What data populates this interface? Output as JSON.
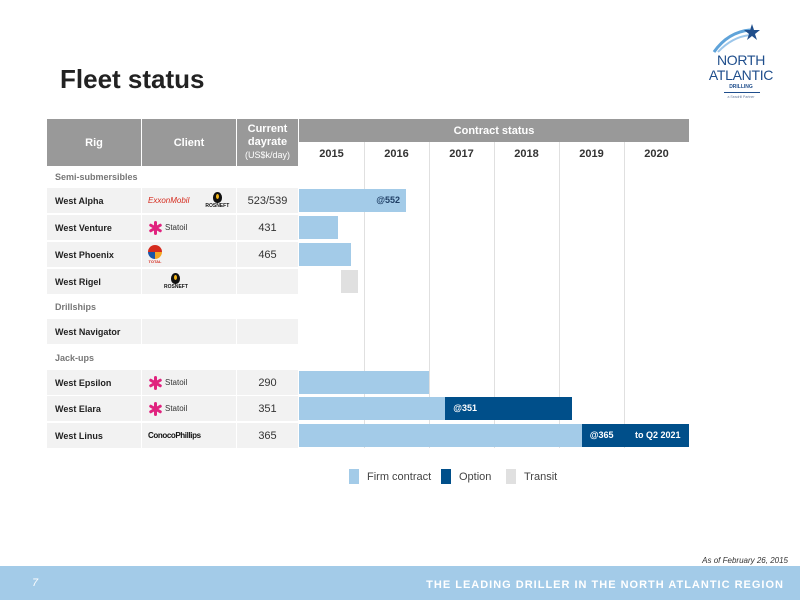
{
  "slide": {
    "title": "Fleet status",
    "page_number": "7",
    "as_of": "As of February 26, 2015",
    "tagline": "THE LEADING DRILLER IN THE NORTH ATLANTIC REGION"
  },
  "logo": {
    "line1": "NORTH",
    "line2": "ATLANTIC",
    "sub": "DRILLING",
    "tag": "a Seadrill Partner"
  },
  "headers": {
    "rig": "Rig",
    "client": "Client",
    "rate_title": "Current dayrate",
    "rate_sub": "(US$k/day)",
    "contract": "Contract status"
  },
  "colors": {
    "firm": "#a3cbe8",
    "option": "#004f8a",
    "transit": "#e0e0e0",
    "header": "#999999",
    "footer": "#a3cbe8"
  },
  "chart_data": {
    "type": "gantt",
    "years": [
      "2015",
      "2016",
      "2017",
      "2018",
      "2019",
      "2020"
    ],
    "sections": [
      "Semi-submersibles",
      "Drillships",
      "Jack-ups"
    ],
    "rows": [
      {
        "rig": "West Alpha",
        "section": "Semi-submersibles",
        "client_logos": [
          "ExxonMobil",
          "ROSNEFT"
        ],
        "dayrate": "523/539",
        "bars": [
          {
            "kind": "firm",
            "start": 2015.0,
            "end": 2016.65,
            "label": "@552"
          }
        ]
      },
      {
        "rig": "West Venture",
        "section": "Semi-submersibles",
        "client_logos": [
          "Statoil"
        ],
        "dayrate": "431",
        "bars": [
          {
            "kind": "firm",
            "start": 2015.0,
            "end": 2015.6
          }
        ]
      },
      {
        "rig": "West Phoenix",
        "section": "Semi-submersibles",
        "client_logos": [
          "TOTAL"
        ],
        "dayrate": "465",
        "bars": [
          {
            "kind": "firm",
            "start": 2015.0,
            "end": 2015.8
          }
        ]
      },
      {
        "rig": "West Rigel",
        "section": "Semi-submersibles",
        "client_logos": [
          "ROSNEFT"
        ],
        "dayrate": "",
        "bars": [
          {
            "kind": "transit",
            "start": 2015.65,
            "end": 2015.9
          }
        ]
      },
      {
        "rig": "West Navigator",
        "section": "Drillships",
        "client_logos": [],
        "dayrate": "",
        "bars": []
      },
      {
        "rig": "West Epsilon",
        "section": "Jack-ups",
        "client_logos": [
          "Statoil"
        ],
        "dayrate": "290",
        "bars": [
          {
            "kind": "firm",
            "start": 2015.0,
            "end": 2017.0
          }
        ]
      },
      {
        "rig": "West Elara",
        "section": "Jack-ups",
        "client_logos": [
          "Statoil"
        ],
        "dayrate": "351",
        "bars": [
          {
            "kind": "firm",
            "start": 2015.0,
            "end": 2017.25
          },
          {
            "kind": "option",
            "start": 2017.25,
            "end": 2019.2,
            "label": "@351"
          }
        ]
      },
      {
        "rig": "West Linus",
        "section": "Jack-ups",
        "client_logos": [
          "ConocoPhillips"
        ],
        "dayrate": "365",
        "bars": [
          {
            "kind": "firm",
            "start": 2015.0,
            "end": 2019.35
          },
          {
            "kind": "option",
            "start": 2019.35,
            "end": 2021.0,
            "label": "@365",
            "note": "to Q2 2021"
          }
        ]
      }
    ],
    "legend": [
      {
        "kind": "firm",
        "label": "Firm contract"
      },
      {
        "kind": "option",
        "label": "Option"
      },
      {
        "kind": "transit",
        "label": "Transit"
      }
    ]
  }
}
